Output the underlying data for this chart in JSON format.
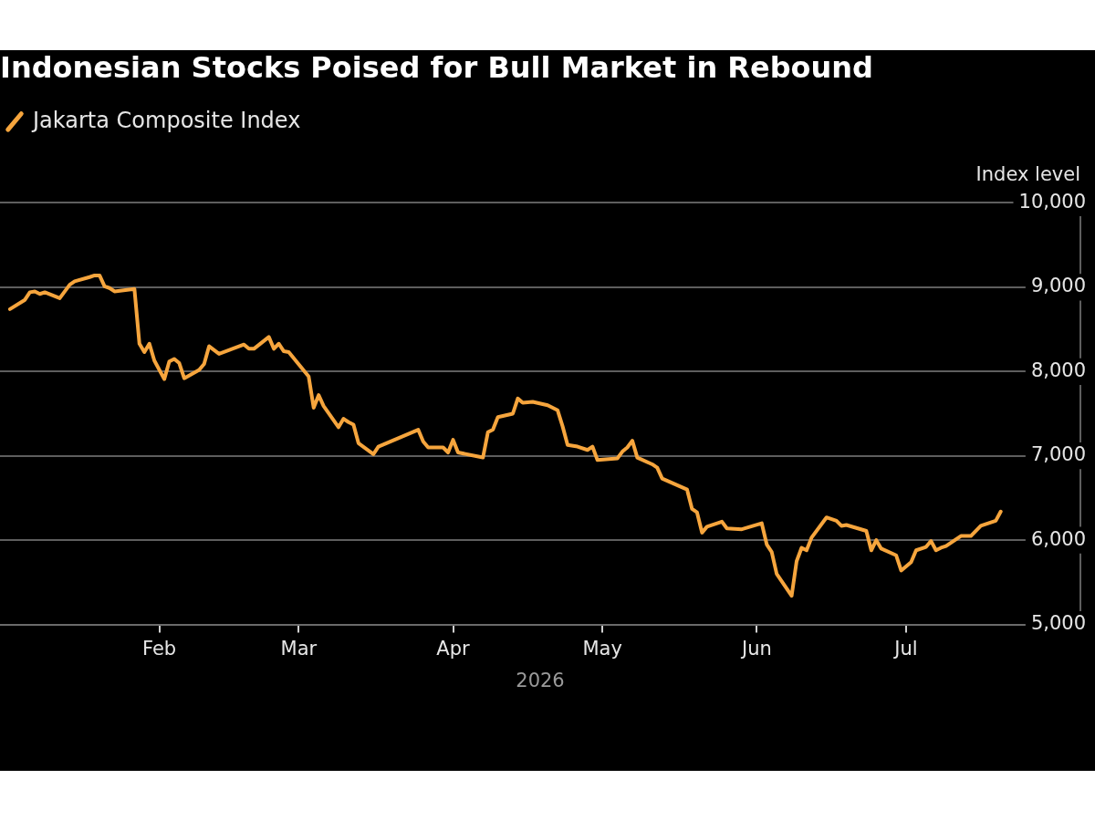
{
  "chart_data": {
    "type": "line",
    "title": "Indonesian Stocks Poised for Bull Market in Rebound",
    "xlabel": "2026",
    "ylabel": "Index level",
    "x": [
      "2026-01-02",
      "2026-01-05",
      "2026-01-06",
      "2026-01-07",
      "2026-01-08",
      "2026-01-09",
      "2026-01-12",
      "2026-01-14",
      "2026-01-15",
      "2026-01-18",
      "2026-01-19",
      "2026-01-20",
      "2026-01-21",
      "2026-01-22",
      "2026-01-23",
      "2026-01-27",
      "2026-01-28",
      "2026-01-29",
      "2026-01-30",
      "2026-01-31",
      "2026-02-02",
      "2026-02-03",
      "2026-02-04",
      "2026-02-05",
      "2026-02-06",
      "2026-02-09",
      "2026-02-10",
      "2026-02-11",
      "2026-02-13",
      "2026-02-18",
      "2026-02-19",
      "2026-02-20",
      "2026-02-23",
      "2026-02-24",
      "2026-02-25",
      "2026-02-26",
      "2026-02-27",
      "2026-03-03",
      "2026-03-04",
      "2026-03-05",
      "2026-03-06",
      "2026-03-09",
      "2026-03-10",
      "2026-03-11",
      "2026-03-12",
      "2026-03-13",
      "2026-03-16",
      "2026-03-17",
      "2026-03-25",
      "2026-03-26",
      "2026-03-27",
      "2026-03-30",
      "2026-03-31",
      "2026-04-01",
      "2026-04-02",
      "2026-04-07",
      "2026-04-08",
      "2026-04-09",
      "2026-04-10",
      "2026-04-13",
      "2026-04-14",
      "2026-04-15",
      "2026-04-17",
      "2026-04-20",
      "2026-04-22",
      "2026-04-23",
      "2026-04-24",
      "2026-04-26",
      "2026-04-28",
      "2026-04-29",
      "2026-04-30",
      "2026-05-04",
      "2026-05-05",
      "2026-05-06",
      "2026-05-07",
      "2026-05-08",
      "2026-05-11",
      "2026-05-12",
      "2026-05-13",
      "2026-05-18",
      "2026-05-19",
      "2026-05-20",
      "2026-05-21",
      "2026-05-22",
      "2026-05-25",
      "2026-05-26",
      "2026-05-29",
      "2026-06-02",
      "2026-06-03",
      "2026-06-04",
      "2026-06-05",
      "2026-06-08",
      "2026-06-09",
      "2026-06-10",
      "2026-06-11",
      "2026-06-12",
      "2026-06-15",
      "2026-06-17",
      "2026-06-18",
      "2026-06-19",
      "2026-06-23",
      "2026-06-24",
      "2026-06-25",
      "2026-06-26",
      "2026-06-29",
      "2026-06-30",
      "2026-07-02",
      "2026-07-03",
      "2026-07-05",
      "2026-07-06",
      "2026-07-07",
      "2026-07-08",
      "2026-07-09",
      "2026-07-12",
      "2026-07-14",
      "2026-07-16",
      "2026-07-19",
      "2026-07-20"
    ],
    "series": [
      {
        "name": "Jakarta Composite Index",
        "color": "#f6a53d",
        "values": [
          8740,
          8850,
          8940,
          8950,
          8920,
          8940,
          8870,
          9030,
          9070,
          9120,
          9140,
          9140,
          9010,
          8990,
          8950,
          8980,
          8330,
          8230,
          8330,
          8130,
          7910,
          8120,
          8150,
          8100,
          7920,
          8020,
          8090,
          8300,
          8210,
          8320,
          8270,
          8270,
          8410,
          8270,
          8330,
          8240,
          8230,
          7940,
          7570,
          7720,
          7590,
          7340,
          7440,
          7400,
          7370,
          7150,
          7020,
          7110,
          7310,
          7170,
          7100,
          7100,
          7040,
          7190,
          7040,
          6980,
          7280,
          7310,
          7460,
          7500,
          7680,
          7630,
          7640,
          7600,
          7540,
          7350,
          7130,
          7110,
          7070,
          7110,
          6950,
          6970,
          7050,
          7100,
          7180,
          6980,
          6900,
          6860,
          6730,
          6600,
          6370,
          6330,
          6090,
          6160,
          6220,
          6140,
          6130,
          6200,
          5950,
          5860,
          5600,
          5340,
          5750,
          5910,
          5880,
          6030,
          6270,
          6230,
          6170,
          6180,
          6110,
          5880,
          6000,
          5900,
          5820,
          5640,
          5740,
          5880,
          5920,
          5990,
          5880,
          5910,
          5930,
          6050,
          6050,
          6170,
          6230,
          6340
        ]
      }
    ],
    "xlim": [
      "2025-12-31",
      "2026-08-05"
    ],
    "xticks": [
      {
        "value": "2026-02-01",
        "label": "Feb"
      },
      {
        "value": "2026-03-01",
        "label": "Mar"
      },
      {
        "value": "2026-04-01",
        "label": "Apr"
      },
      {
        "value": "2026-05-01",
        "label": "May"
      },
      {
        "value": "2026-06-01",
        "label": "Jun"
      },
      {
        "value": "2026-07-01",
        "label": "Jul"
      }
    ],
    "ylim": [
      5000,
      10000
    ],
    "yticks": [
      {
        "value": 5000,
        "label": "5,000"
      },
      {
        "value": 6000,
        "label": "6,000"
      },
      {
        "value": 7000,
        "label": "7,000"
      },
      {
        "value": 8000,
        "label": "8,000"
      },
      {
        "value": 9000,
        "label": "9,000"
      },
      {
        "value": 10000,
        "label": "10,000"
      }
    ],
    "grid": "y",
    "legend": "top left",
    "marker": "none",
    "line_style": "solid"
  }
}
